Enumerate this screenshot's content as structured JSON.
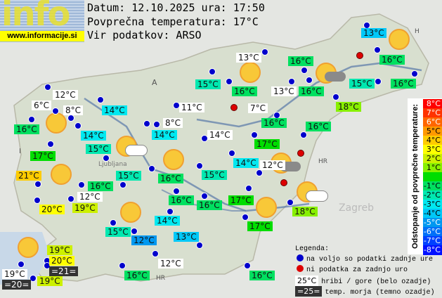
{
  "logo": {
    "word": "info",
    "url": "www.informacije.si"
  },
  "header": {
    "date_line": "Datum: 12.10.2025 ura: 17:50",
    "avg_temp_line": "Povprečna temperatura: 17°C",
    "source_line": "Vir podatkov: ARSO"
  },
  "map_labels": {
    "austria": "A",
    "hungary": "H",
    "italy": "I",
    "croatia": "HR",
    "croatia2": "HR",
    "ljubljana": "Ljubljana",
    "zagreb": "Zagreb"
  },
  "stations": [
    {
      "temp": "13°C",
      "kind": "dev",
      "dev": -4
    },
    {
      "temp": "13°C",
      "kind": "mountain"
    },
    {
      "temp": "16°C",
      "kind": "dev",
      "dev": -1
    },
    {
      "temp": "16°C",
      "kind": "dev",
      "dev": -1
    },
    {
      "temp": "15°C",
      "kind": "dev",
      "dev": -2
    },
    {
      "temp": "16°C",
      "kind": "dev",
      "dev": -1
    },
    {
      "temp": "13°C",
      "kind": "mountain"
    },
    {
      "temp": "16°C",
      "kind": "dev",
      "dev": -1
    },
    {
      "temp": "15°C",
      "kind": "dev",
      "dev": -2
    },
    {
      "temp": "16°C",
      "kind": "dev",
      "dev": -1
    },
    {
      "temp": "18°C",
      "kind": "dev",
      "dev": 1
    },
    {
      "temp": "12°C",
      "kind": "mountain"
    },
    {
      "temp": "6°C",
      "kind": "mountain"
    },
    {
      "temp": "8°C",
      "kind": "mountain"
    },
    {
      "temp": "14°C",
      "kind": "dev",
      "dev": -3
    },
    {
      "temp": "11°C",
      "kind": "mountain"
    },
    {
      "temp": "7°C",
      "kind": "mountain"
    },
    {
      "temp": "16°C",
      "kind": "dev",
      "dev": -1
    },
    {
      "temp": "14°C",
      "kind": "dev",
      "dev": -3
    },
    {
      "temp": "8°C",
      "kind": "mountain"
    },
    {
      "temp": "14°C",
      "kind": "dev",
      "dev": -3
    },
    {
      "temp": "14°C",
      "kind": "mountain"
    },
    {
      "temp": "16°C",
      "kind": "dev",
      "dev": -1
    },
    {
      "temp": "16°C",
      "kind": "dev",
      "dev": -1
    },
    {
      "temp": "15°C",
      "kind": "dev",
      "dev": -2
    },
    {
      "temp": "17°C",
      "kind": "dev",
      "dev": 0
    },
    {
      "temp": "17°C",
      "kind": "dev",
      "dev": 0
    },
    {
      "temp": "14°C",
      "kind": "dev",
      "dev": -3
    },
    {
      "temp": "12°C",
      "kind": "mountain"
    },
    {
      "temp": "21°C",
      "kind": "dev",
      "dev": 4
    },
    {
      "temp": "15°C",
      "kind": "dev",
      "dev": -2
    },
    {
      "temp": "16°C",
      "kind": "dev",
      "dev": -1
    },
    {
      "temp": "15°C",
      "kind": "dev",
      "dev": -2
    },
    {
      "temp": "16°C",
      "kind": "dev",
      "dev": -1
    },
    {
      "temp": "12°C",
      "kind": "mountain"
    },
    {
      "temp": "20°C",
      "kind": "dev",
      "dev": 3
    },
    {
      "temp": "19°C",
      "kind": "dev",
      "dev": 2
    },
    {
      "temp": "16°C",
      "kind": "dev",
      "dev": -1
    },
    {
      "temp": "16°C",
      "kind": "dev",
      "dev": -1
    },
    {
      "temp": "17°C",
      "kind": "dev",
      "dev": 0
    },
    {
      "temp": "17°C",
      "kind": "dev",
      "dev": 0
    },
    {
      "temp": "18°C",
      "kind": "dev",
      "dev": 1
    },
    {
      "temp": "15°C",
      "kind": "dev",
      "dev": -2
    },
    {
      "temp": "14°C",
      "kind": "dev",
      "dev": -3
    },
    {
      "temp": "12°C",
      "kind": "dev",
      "dev": -5
    },
    {
      "temp": "13°C",
      "kind": "dev",
      "dev": -4
    },
    {
      "temp": "12°C",
      "kind": "mountain"
    },
    {
      "temp": "19°C",
      "kind": "dev",
      "dev": 2
    },
    {
      "temp": "20°C",
      "kind": "dev",
      "dev": 3
    },
    {
      "temp": "=21=",
      "kind": "sea"
    },
    {
      "temp": "19°C",
      "kind": "mountain"
    },
    {
      "temp": "=20=",
      "kind": "sea"
    },
    {
      "temp": "19°C",
      "kind": "dev",
      "dev": 2
    },
    {
      "temp": "16°C",
      "kind": "dev",
      "dev": -1
    },
    {
      "temp": "16°C",
      "kind": "dev",
      "dev": -1
    }
  ],
  "dot_status": {
    "available_color": "#0000cc",
    "missing_color": "#dd0000",
    "missing_count": 4
  },
  "weather_icons": [
    "sun",
    "sun",
    "sun",
    "sun",
    "sun",
    "sun",
    "sun",
    "sun",
    "sun-cloud",
    "sun-cloud",
    "sun-cloud",
    "sun-cloud"
  ],
  "scale": {
    "title": "Odstopanje od povprečne temperature:",
    "rows": [
      {
        "label": "8°C",
        "color": "#ff0000"
      },
      {
        "label": "7°C",
        "color": "#ff3300"
      },
      {
        "label": "6°C",
        "color": "#ff6600"
      },
      {
        "label": "5°C",
        "color": "#ff9900"
      },
      {
        "label": "4°C",
        "color": "#ffcc00"
      },
      {
        "label": "3°C",
        "color": "#ffff00"
      },
      {
        "label": "2°C",
        "color": "#ccf000"
      },
      {
        "label": "1°C",
        "color": "#88f000"
      },
      {
        "label": "",
        "color": "#00dd00"
      },
      {
        "label": "-1°C",
        "color": "#00e060"
      },
      {
        "label": "-2°C",
        "color": "#00e8b0"
      },
      {
        "label": "-3°C",
        "color": "#00e8f0"
      },
      {
        "label": "-4°C",
        "color": "#00c8f8"
      },
      {
        "label": "-5°C",
        "color": "#0098f0"
      },
      {
        "label": "-6°C",
        "color": "#0070f8"
      },
      {
        "label": "-7°C",
        "color": "#0040ff"
      },
      {
        "label": "-8°C",
        "color": "#0010ff"
      }
    ],
    "mountain_color": "#ffffff",
    "sea_color": "#333333"
  },
  "legend": {
    "title": "Legenda:",
    "available": "na voljo so podatki zadnje ure",
    "missing": "ni podatka za zadnjo uro",
    "mountain_sample": "25°C",
    "mountain_text": "hribi / gore (belo ozadje)",
    "sea_sample": "=25=",
    "sea_text": "temp. morja (temno ozadje)"
  }
}
